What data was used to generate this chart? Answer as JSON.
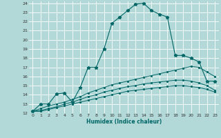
{
  "xlabel": "Humidex (Indice chaleur)",
  "background_color": "#b2d8d8",
  "grid_color": "#ffffff",
  "line_color": "#006666",
  "xlim": [
    -0.5,
    23.5
  ],
  "ylim": [
    12,
    24.2
  ],
  "xticks": [
    0,
    1,
    2,
    3,
    4,
    5,
    6,
    7,
    8,
    9,
    10,
    11,
    12,
    13,
    14,
    15,
    16,
    17,
    18,
    19,
    20,
    21,
    22,
    23
  ],
  "yticks": [
    12,
    13,
    14,
    15,
    16,
    17,
    18,
    19,
    20,
    21,
    22,
    23,
    24
  ],
  "lines": [
    {
      "x": [
        0,
        1,
        2,
        3,
        4,
        5,
        6,
        7,
        8,
        9,
        10,
        11,
        12,
        13,
        14,
        15,
        16,
        17,
        18,
        19,
        20,
        21,
        22,
        23
      ],
      "y": [
        12.2,
        13.0,
        13.0,
        14.1,
        14.2,
        13.2,
        14.8,
        17.0,
        17.0,
        19.0,
        21.8,
        22.5,
        23.2,
        23.9,
        24.0,
        23.2,
        22.8,
        22.5,
        18.3,
        18.3,
        18.0,
        17.6,
        15.5,
        15.5
      ]
    },
    {
      "x": [
        0,
        1,
        2,
        3,
        4,
        5,
        6,
        7,
        8,
        9,
        10,
        11,
        12,
        13,
        14,
        15,
        16,
        17,
        18,
        19,
        20,
        21,
        22,
        23
      ],
      "y": [
        12.2,
        12.5,
        12.8,
        13.0,
        13.2,
        13.5,
        13.8,
        14.2,
        14.5,
        14.8,
        15.1,
        15.3,
        15.5,
        15.7,
        15.9,
        16.1,
        16.3,
        16.5,
        16.7,
        16.9,
        17.1,
        17.0,
        16.5,
        16.0
      ]
    },
    {
      "x": [
        0,
        1,
        2,
        3,
        4,
        5,
        6,
        7,
        8,
        9,
        10,
        11,
        12,
        13,
        14,
        15,
        16,
        17,
        18,
        19,
        20,
        21,
        22,
        23
      ],
      "y": [
        12.2,
        12.3,
        12.5,
        12.7,
        13.0,
        13.2,
        13.5,
        13.8,
        14.0,
        14.3,
        14.5,
        14.7,
        14.9,
        15.0,
        15.2,
        15.3,
        15.4,
        15.5,
        15.6,
        15.6,
        15.5,
        15.3,
        15.0,
        14.5
      ]
    },
    {
      "x": [
        0,
        1,
        2,
        3,
        4,
        5,
        6,
        7,
        8,
        9,
        10,
        11,
        12,
        13,
        14,
        15,
        16,
        17,
        18,
        19,
        20,
        21,
        22,
        23
      ],
      "y": [
        12.2,
        12.2,
        12.4,
        12.6,
        12.8,
        13.0,
        13.2,
        13.4,
        13.6,
        13.8,
        14.0,
        14.2,
        14.4,
        14.5,
        14.6,
        14.7,
        14.8,
        14.9,
        15.0,
        15.0,
        14.9,
        14.8,
        14.6,
        14.3
      ]
    }
  ]
}
